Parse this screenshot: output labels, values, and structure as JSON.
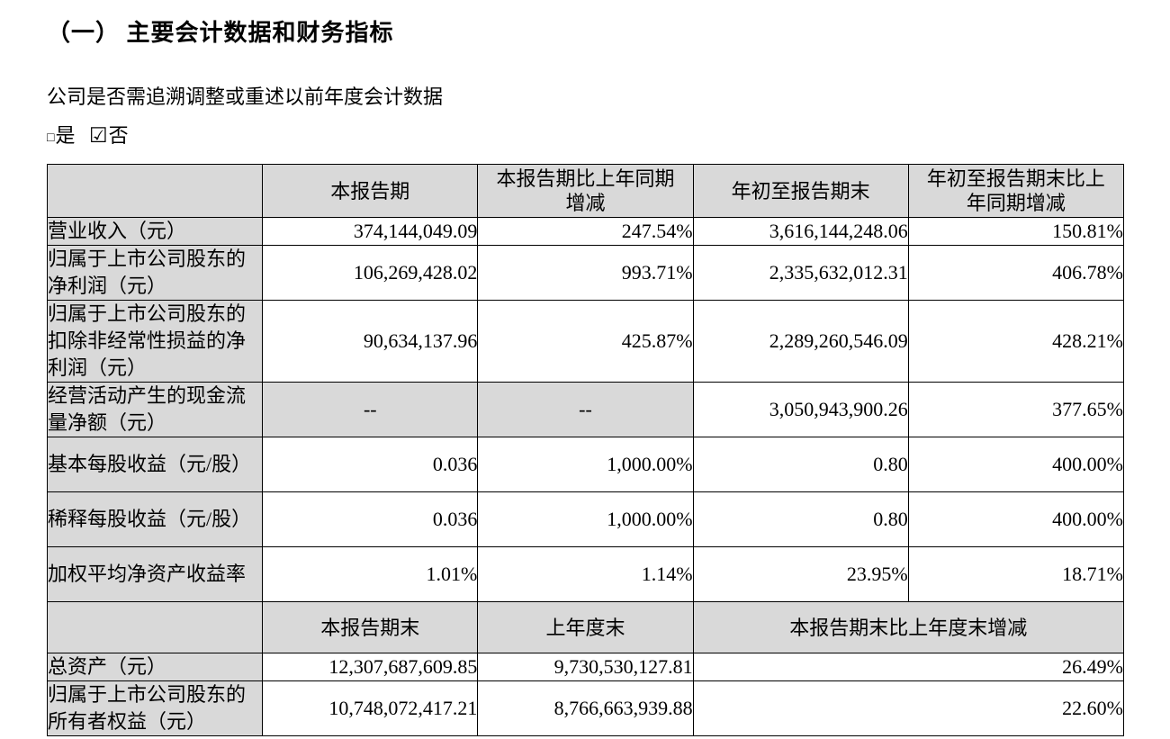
{
  "section": {
    "title": "（一） 主要会计数据和财务指标",
    "question": "公司是否需追溯调整或重述以前年度会计数据",
    "options": [
      {
        "symbol": "□",
        "label": "是",
        "checked": false
      },
      {
        "symbol": "☑",
        "label": "否",
        "checked": true
      }
    ]
  },
  "table": {
    "header1": [
      "本报告期",
      "本报告期比上年同期增减",
      "年初至报告期末",
      "年初至报告期末比上年同期增减"
    ],
    "rows1": [
      {
        "label": "营业收入（元）",
        "values": [
          "374,144,049.09",
          "247.54%",
          "3,616,144,248.06",
          "150.81%"
        ]
      },
      {
        "label": "归属于上市公司股东的净利润（元）",
        "values": [
          "106,269,428.02",
          "993.71%",
          "2,335,632,012.31",
          "406.78%"
        ]
      },
      {
        "label": "归属于上市公司股东的扣除非经常性损益的净利润（元）",
        "values": [
          "90,634,137.96",
          "425.87%",
          "2,289,260,546.09",
          "428.21%"
        ]
      },
      {
        "label": "经营活动产生的现金流量净额（元）",
        "values": [
          "--",
          "--",
          "3,050,943,900.26",
          "377.65%"
        ]
      },
      {
        "label": "基本每股收益（元/股）",
        "values": [
          "0.036",
          "1,000.00%",
          "0.80",
          "400.00%"
        ]
      },
      {
        "label": "稀释每股收益（元/股）",
        "values": [
          "0.036",
          "1,000.00%",
          "0.80",
          "400.00%"
        ]
      },
      {
        "label": "加权平均净资产收益率",
        "values": [
          "1.01%",
          "1.14%",
          "23.95%",
          "18.71%"
        ]
      }
    ],
    "header2": [
      "本报告期末",
      "上年度末",
      "本报告期末比上年度末增减"
    ],
    "rows2": [
      {
        "label": "总资产（元）",
        "values": [
          "12,307,687,609.85",
          "9,730,530,127.81",
          "26.49%"
        ]
      },
      {
        "label": "归属于上市公司股东的所有者权益（元）",
        "values": [
          "10,748,072,417.21",
          "8,766,663,939.88",
          "22.60%"
        ]
      }
    ]
  },
  "colors": {
    "header_cell_bg": "#d9d9d9",
    "table_border": "#000000",
    "text": "#000000",
    "page_bg": "#ffffff"
  }
}
